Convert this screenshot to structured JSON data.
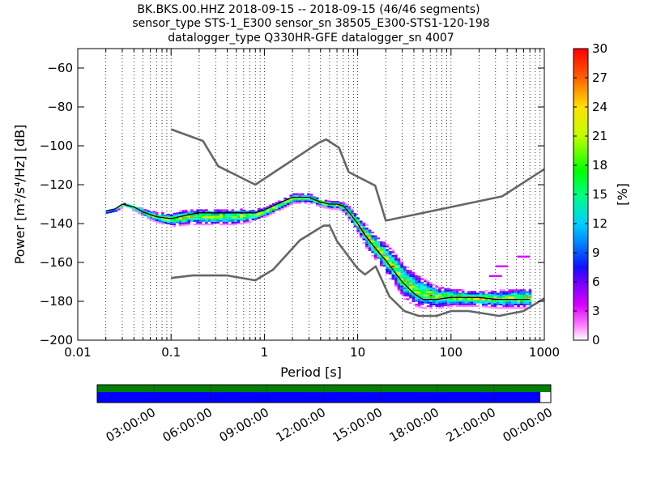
{
  "chart_data": {
    "type": "heatmap",
    "title_lines": [
      "BK.BKS.00.HHZ   2018-09-15 -- 2018-09-15  (46/46 segments)",
      "sensor_type STS-1_E300 sensor_sn 38505_E300-STS1-120-198",
      "datalogger_type Q330HR-GFE datalogger_sn 4007"
    ],
    "xlabel": "Period [s]",
    "ylabel": "Power [m²/s⁴/Hz] [dB]",
    "x_scale": "log",
    "xlim": [
      0.01,
      1000
    ],
    "ylim": [
      -200,
      -50
    ],
    "x_ticks": [
      {
        "value": 0.01,
        "label": "0.01"
      },
      {
        "value": 0.1,
        "label": "0.1"
      },
      {
        "value": 1,
        "label": "1"
      },
      {
        "value": 10,
        "label": "10"
      },
      {
        "value": 100,
        "label": "100"
      },
      {
        "value": 1000,
        "label": "1000"
      }
    ],
    "y_ticks": [
      {
        "value": -60,
        "label": "−60"
      },
      {
        "value": -80,
        "label": "−80"
      },
      {
        "value": -100,
        "label": "−100"
      },
      {
        "value": -120,
        "label": "−120"
      },
      {
        "value": -140,
        "label": "−140"
      },
      {
        "value": -160,
        "label": "−160"
      },
      {
        "value": -180,
        "label": "−180"
      },
      {
        "value": -200,
        "label": "−200"
      }
    ],
    "grid": "vertical-dotted",
    "colorbar": {
      "label": "[%]",
      "range": [
        0,
        30
      ],
      "ticks": [
        {
          "value": 0,
          "label": "0"
        },
        {
          "value": 3,
          "label": "3"
        },
        {
          "value": 6,
          "label": "6"
        },
        {
          "value": 9,
          "label": "9"
        },
        {
          "value": 12,
          "label": "12"
        },
        {
          "value": 15,
          "label": "15"
        },
        {
          "value": 18,
          "label": "18"
        },
        {
          "value": 21,
          "label": "21"
        },
        {
          "value": 24,
          "label": "24"
        },
        {
          "value": 27,
          "label": "27"
        },
        {
          "value": 30,
          "label": "30"
        }
      ]
    },
    "series": [
      {
        "role": "high-noise-model",
        "color": "#666666",
        "points": [
          [
            0.1,
            -91.5
          ],
          [
            0.22,
            -97.5
          ],
          [
            0.32,
            -110.5
          ],
          [
            0.8,
            -120
          ],
          [
            3.8,
            -98.5
          ],
          [
            4.6,
            -96.7
          ],
          [
            6.3,
            -101
          ],
          [
            8,
            -113.5
          ],
          [
            15.4,
            -120.5
          ],
          [
            20,
            -138.5
          ],
          [
            354,
            -126
          ],
          [
            1000,
            -112
          ]
        ]
      },
      {
        "role": "low-noise-model",
        "color": "#666666",
        "points": [
          [
            0.1,
            -168
          ],
          [
            0.17,
            -166.7
          ],
          [
            0.4,
            -166.7
          ],
          [
            0.8,
            -169.2
          ],
          [
            1.24,
            -163.7
          ],
          [
            2.4,
            -148.6
          ],
          [
            4.3,
            -141.1
          ],
          [
            5,
            -141
          ],
          [
            6,
            -149
          ],
          [
            10,
            -163.2
          ],
          [
            12,
            -166.2
          ],
          [
            15.6,
            -162
          ],
          [
            21.9,
            -177.5
          ],
          [
            31.6,
            -185
          ],
          [
            45,
            -187.5
          ],
          [
            70,
            -187.5
          ],
          [
            101,
            -185
          ],
          [
            154,
            -185
          ],
          [
            328,
            -187.5
          ],
          [
            600,
            -185
          ],
          [
            1000,
            -178.5
          ]
        ]
      },
      {
        "role": "median",
        "color": "#000000",
        "points": [
          [
            0.02,
            -133.5
          ],
          [
            0.025,
            -132.5
          ],
          [
            0.03,
            -130
          ],
          [
            0.04,
            -131.5
          ],
          [
            0.05,
            -134
          ],
          [
            0.07,
            -136.5
          ],
          [
            0.1,
            -137.5
          ],
          [
            0.15,
            -135.5
          ],
          [
            0.2,
            -134.5
          ],
          [
            0.3,
            -134.5
          ],
          [
            0.5,
            -134.5
          ],
          [
            0.8,
            -134.5
          ],
          [
            1,
            -133
          ],
          [
            1.5,
            -129
          ],
          [
            2,
            -126.5
          ],
          [
            3,
            -126.5
          ],
          [
            4,
            -129
          ],
          [
            5,
            -130
          ],
          [
            6,
            -130
          ],
          [
            7,
            -131
          ],
          [
            8,
            -134
          ],
          [
            10,
            -140
          ],
          [
            12,
            -146
          ],
          [
            15,
            -152
          ],
          [
            20,
            -159
          ],
          [
            25,
            -165
          ],
          [
            30,
            -170
          ],
          [
            40,
            -176
          ],
          [
            50,
            -179
          ],
          [
            70,
            -179
          ],
          [
            100,
            -178
          ],
          [
            150,
            -178
          ],
          [
            200,
            -178
          ],
          [
            300,
            -179
          ],
          [
            500,
            -179
          ],
          [
            700,
            -179
          ]
        ]
      }
    ],
    "density": [
      {
        "x": 0.02,
        "lo": -134,
        "hi": -133
      },
      {
        "x": 0.025,
        "lo": -133,
        "hi": -132
      },
      {
        "x": 0.03,
        "lo": -131,
        "hi": -129
      },
      {
        "x": 0.04,
        "lo": -133,
        "hi": -130
      },
      {
        "x": 0.05,
        "lo": -136,
        "hi": -132
      },
      {
        "x": 0.07,
        "lo": -139,
        "hi": -134
      },
      {
        "x": 0.1,
        "lo": -141,
        "hi": -134
      },
      {
        "x": 0.15,
        "lo": -140,
        "hi": -132
      },
      {
        "x": 0.2,
        "lo": -140,
        "hi": -132
      },
      {
        "x": 0.3,
        "lo": -140,
        "hi": -132
      },
      {
        "x": 0.5,
        "lo": -140,
        "hi": -132
      },
      {
        "x": 0.8,
        "lo": -138,
        "hi": -132
      },
      {
        "x": 1,
        "lo": -136,
        "hi": -131
      },
      {
        "x": 1.5,
        "lo": -132,
        "hi": -127
      },
      {
        "x": 2,
        "lo": -129,
        "hi": -124
      },
      {
        "x": 3,
        "lo": -129,
        "hi": -124
      },
      {
        "x": 4,
        "lo": -131,
        "hi": -127
      },
      {
        "x": 5,
        "lo": -132,
        "hi": -128
      },
      {
        "x": 6,
        "lo": -132,
        "hi": -128
      },
      {
        "x": 7,
        "lo": -134,
        "hi": -129
      },
      {
        "x": 8,
        "lo": -138,
        "hi": -131
      },
      {
        "x": 10,
        "lo": -145,
        "hi": -136
      },
      {
        "x": 12,
        "lo": -152,
        "hi": -140
      },
      {
        "x": 15,
        "lo": -158,
        "hi": -145
      },
      {
        "x": 20,
        "lo": -166,
        "hi": -150
      },
      {
        "x": 25,
        "lo": -172,
        "hi": -155
      },
      {
        "x": 30,
        "lo": -178,
        "hi": -160
      },
      {
        "x": 40,
        "lo": -182,
        "hi": -165
      },
      {
        "x": 50,
        "lo": -183,
        "hi": -168
      },
      {
        "x": 70,
        "lo": -183,
        "hi": -172
      },
      {
        "x": 100,
        "lo": -182,
        "hi": -173
      },
      {
        "x": 150,
        "lo": -182,
        "hi": -174
      },
      {
        "x": 200,
        "lo": -182,
        "hi": -174
      },
      {
        "x": 300,
        "lo": -183,
        "hi": -174
      },
      {
        "x": 500,
        "lo": -183,
        "hi": -173
      },
      {
        "x": 700,
        "lo": -183,
        "hi": -173
      }
    ],
    "outliers": [
      {
        "x": 300,
        "y": -167
      },
      {
        "x": 350,
        "y": -162
      },
      {
        "x": 600,
        "y": -157
      }
    ],
    "timeline": {
      "tick_labels": [
        "03:00:00",
        "06:00:00",
        "09:00:00",
        "12:00:00",
        "15:00:00",
        "18:00:00",
        "21:00:00",
        "00:00:00"
      ],
      "top_bar_color": "#008000",
      "bottom_bar_color": "#0000ff",
      "bottom_bar_coverage": 0.977
    }
  }
}
